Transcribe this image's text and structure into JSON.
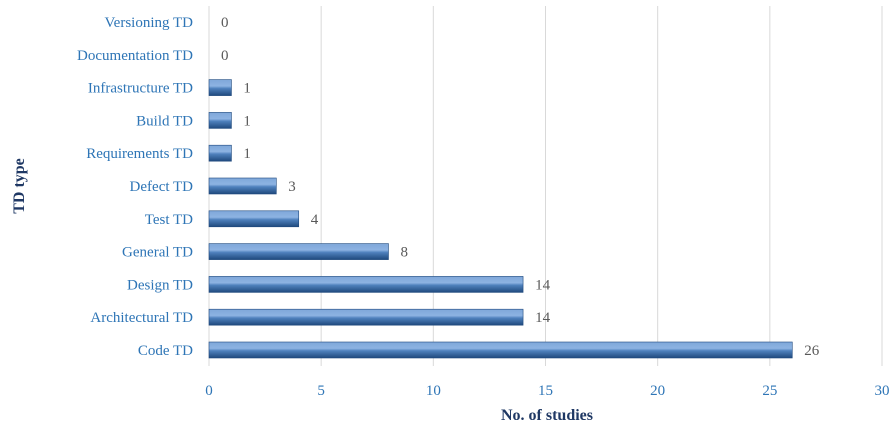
{
  "chart_data": {
    "type": "bar",
    "orientation": "horizontal",
    "categories": [
      "Versioning TD",
      "Documentation TD",
      "Infrastructure TD",
      "Build TD",
      "Requirements TD",
      "Defect TD",
      "Test TD",
      "General TD",
      "Design TD",
      "Architectural TD",
      "Code TD"
    ],
    "values": [
      0,
      0,
      1,
      1,
      1,
      3,
      4,
      8,
      14,
      14,
      26
    ],
    "xlabel": "No. of studies",
    "ylabel": "TD type",
    "xlim": [
      0,
      30
    ],
    "xticks": [
      0,
      5,
      10,
      15,
      20,
      25,
      30
    ],
    "grid": true,
    "data_labels": true,
    "colors": {
      "bar": "#4f81bd",
      "bar_light": "#8db3e2",
      "bar_dark": "#1f497d",
      "text": "#2e75b6",
      "value_label": "#595959"
    }
  }
}
